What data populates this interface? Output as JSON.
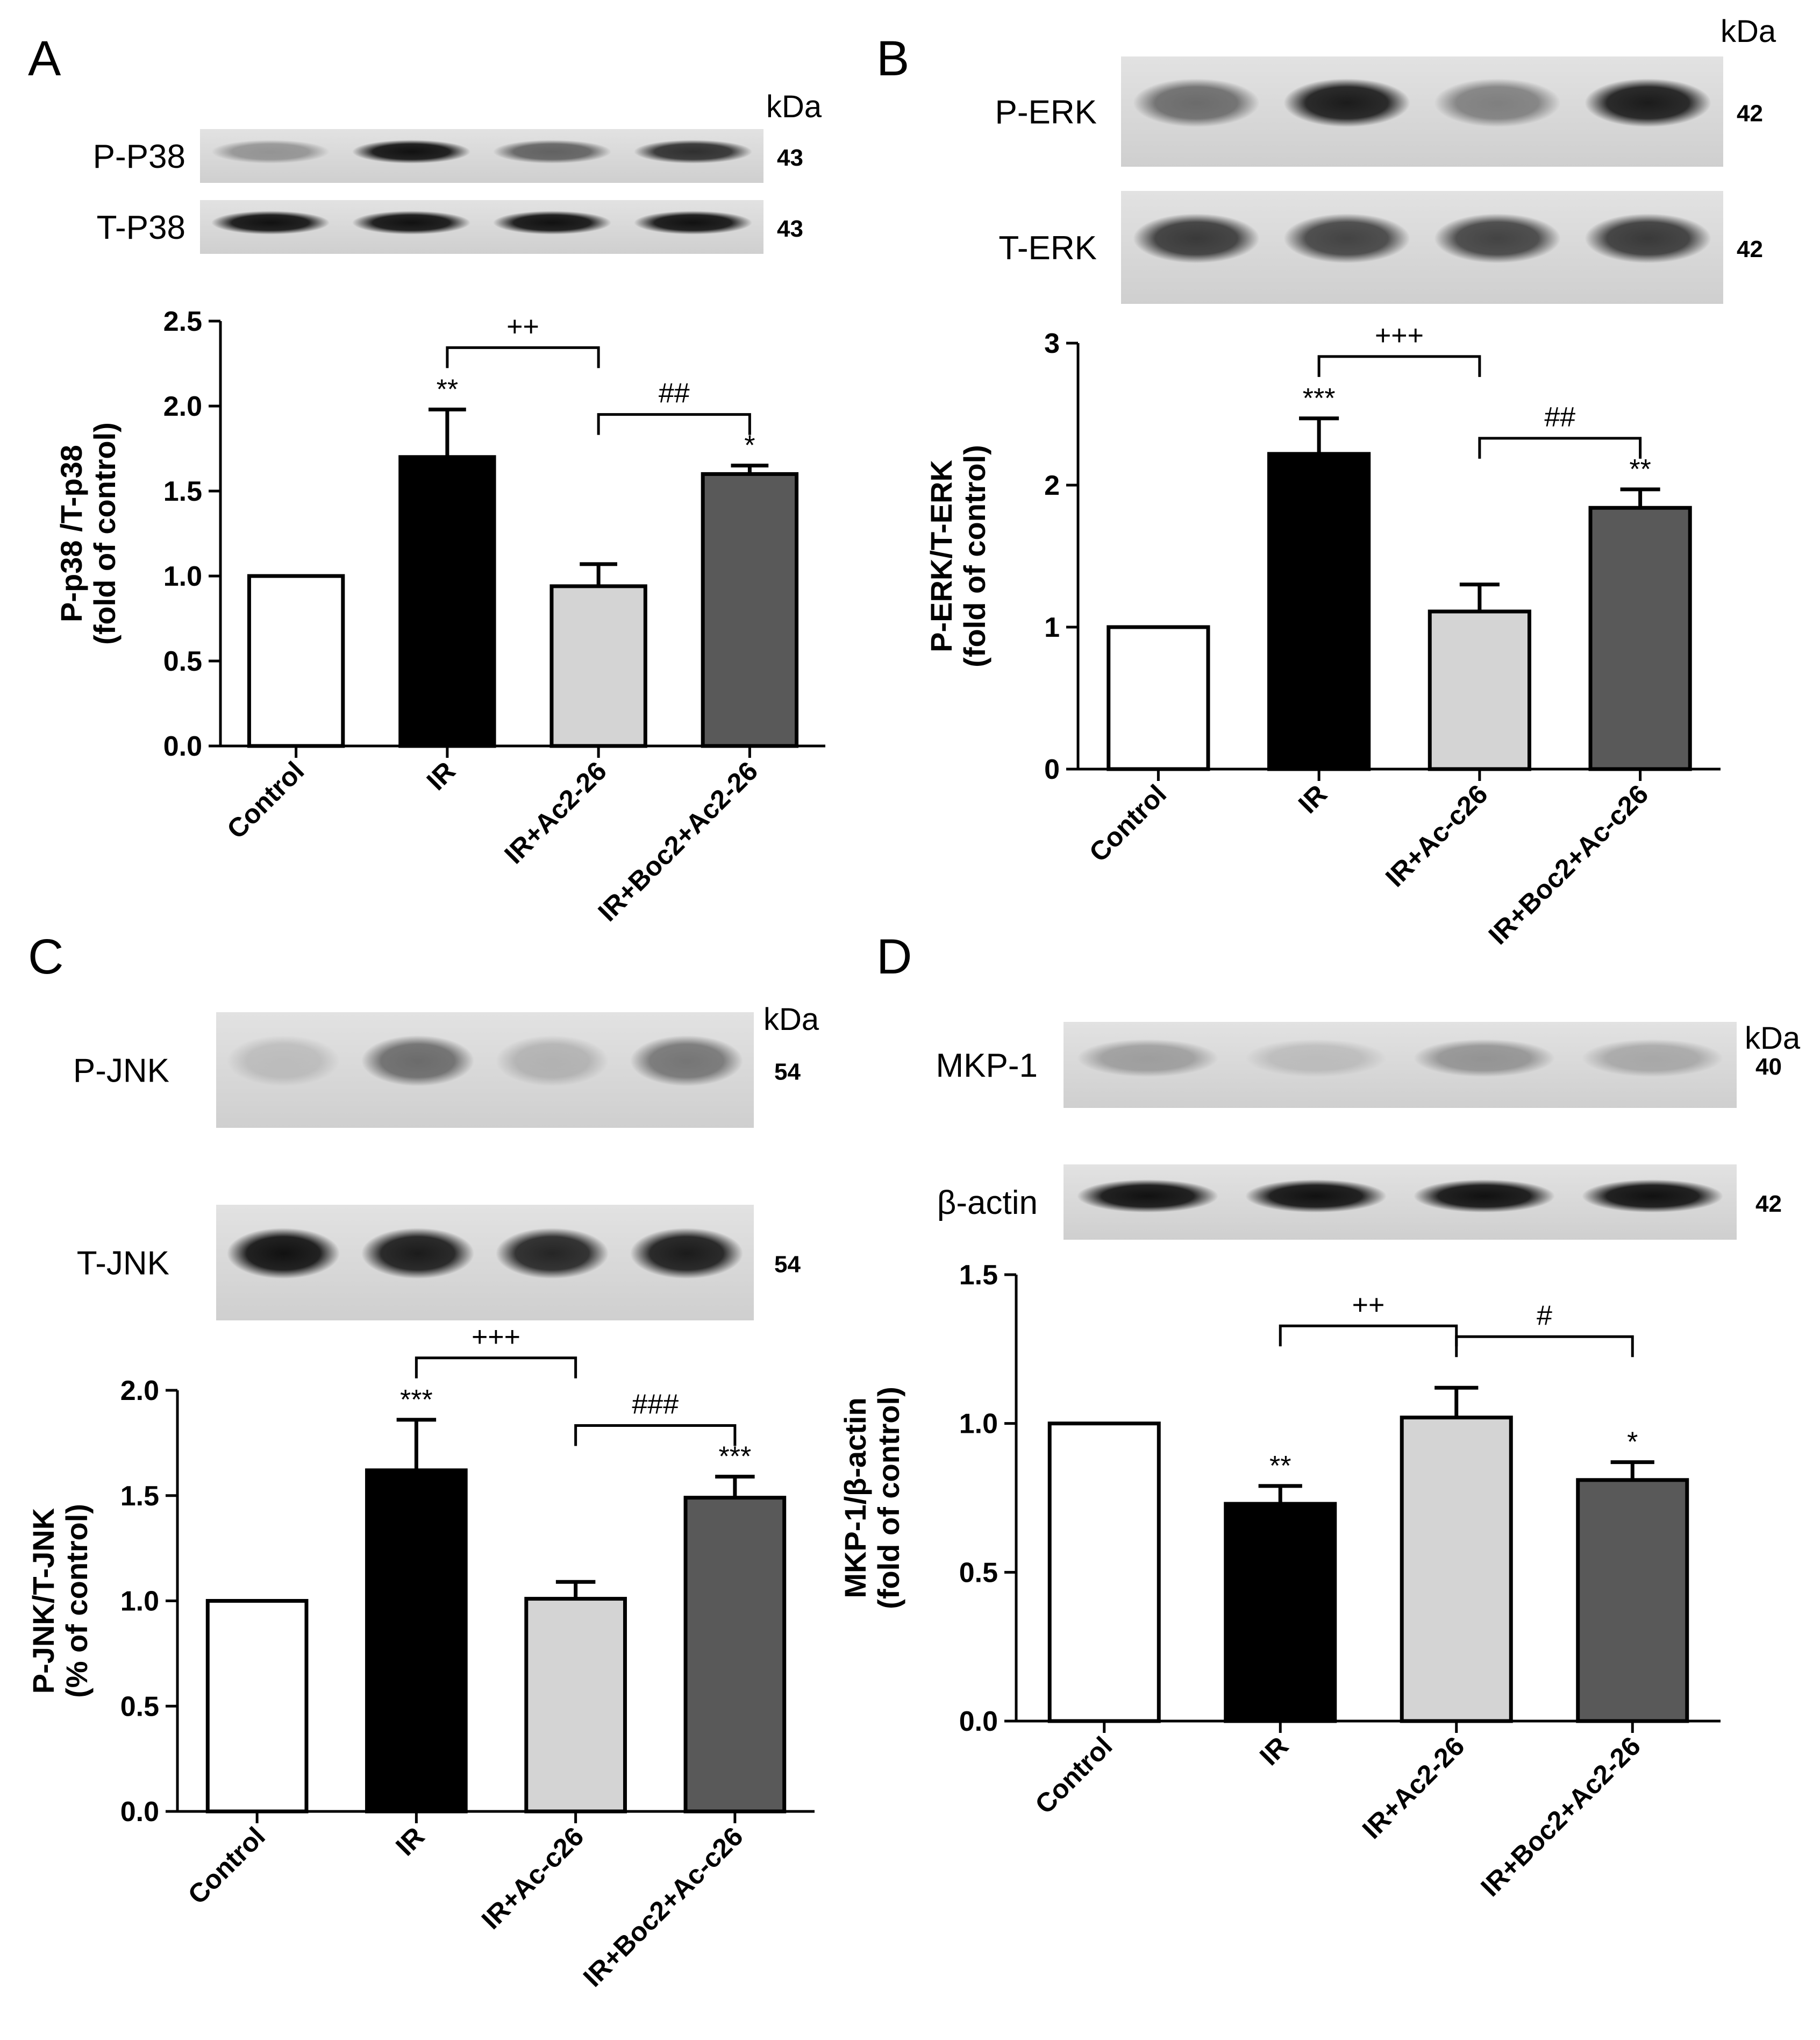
{
  "colors": {
    "control": "#ffffff",
    "ir": "#000000",
    "treat": "#d4d4d4",
    "boc": "#595959",
    "axis": "#000000",
    "gel_bg": "#d9d9d9"
  },
  "panels": [
    {
      "letter": "A",
      "kda_label": "kDa",
      "blots": [
        {
          "label": "P-P38",
          "kda": "43",
          "intensity": [
            0.35,
            1.0,
            0.6,
            0.85
          ]
        },
        {
          "label": "T-P38",
          "kda": "43",
          "intensity": [
            1.0,
            1.0,
            1.0,
            1.0
          ]
        }
      ]
    },
    {
      "letter": "B",
      "kda_label": "kDa",
      "blots": [
        {
          "label": "P-ERK",
          "kda": "42",
          "intensity": [
            0.55,
            0.95,
            0.45,
            0.95
          ]
        },
        {
          "label": "T-ERK",
          "kda": "42",
          "intensity": [
            0.8,
            0.75,
            0.75,
            0.8
          ]
        }
      ]
    },
    {
      "letter": "C",
      "kda_label": "kDa",
      "blots": [
        {
          "label": "P-JNK",
          "kda": "54",
          "intensity": [
            0.15,
            0.55,
            0.2,
            0.5
          ]
        },
        {
          "label": "T-JNK",
          "kda": "54",
          "intensity": [
            1.0,
            0.95,
            0.9,
            0.95
          ]
        }
      ]
    },
    {
      "letter": "D",
      "kda_label": "kDa",
      "blots": [
        {
          "label": "MKP-1",
          "kda": "40",
          "intensity": [
            0.3,
            0.15,
            0.35,
            0.25
          ]
        },
        {
          "label": "β-actin",
          "kda": "42",
          "intensity": [
            1.0,
            1.0,
            1.0,
            1.0
          ]
        }
      ]
    }
  ],
  "chart_data": [
    {
      "type": "bar",
      "panel": "A",
      "categories": [
        "Control",
        "IR",
        "IR+Ac2-26",
        "IR+Boc2+Ac2-26"
      ],
      "values": [
        1.0,
        1.7,
        0.94,
        1.6
      ],
      "errors": [
        0,
        0.28,
        0.13,
        0.05
      ],
      "significance": [
        "",
        "**",
        "",
        "*"
      ],
      "brackets": [
        {
          "from": 1,
          "to": 2,
          "label": "++"
        },
        {
          "from": 2,
          "to": 3,
          "label": "##"
        }
      ],
      "ylabel": [
        "P-p38 /T-p38",
        "(fold of control)"
      ],
      "ylim": [
        0,
        2.5
      ],
      "ticks": [
        "0.0",
        "0.5",
        "1.0",
        "1.5",
        "2.0",
        "2.5"
      ]
    },
    {
      "type": "bar",
      "panel": "B",
      "categories": [
        "Control",
        "IR",
        "IR+Ac-c26",
        "IR+Boc2+Ac-c26"
      ],
      "values": [
        1.0,
        2.22,
        1.11,
        1.84
      ],
      "errors": [
        0,
        0.25,
        0.19,
        0.13
      ],
      "significance": [
        "",
        "***",
        "",
        "**"
      ],
      "brackets": [
        {
          "from": 1,
          "to": 2,
          "label": "+++"
        },
        {
          "from": 2,
          "to": 3,
          "label": "##"
        }
      ],
      "ylabel": [
        "P-ERK/T-ERK",
        "(fold of control)"
      ],
      "ylim": [
        0,
        3
      ],
      "ticks": [
        "0",
        "1",
        "2",
        "3"
      ]
    },
    {
      "type": "bar",
      "panel": "C",
      "categories": [
        "Control",
        "IR",
        "IR+Ac-c26",
        "IR+Boc2+Ac-c26"
      ],
      "values": [
        1.0,
        1.62,
        1.01,
        1.49
      ],
      "errors": [
        0,
        0.24,
        0.08,
        0.1
      ],
      "significance": [
        "",
        "***",
        "",
        "***"
      ],
      "brackets": [
        {
          "from": 1,
          "to": 2,
          "label": "+++"
        },
        {
          "from": 2,
          "to": 3,
          "label": "###"
        }
      ],
      "ylabel": [
        "P-JNK/T-JNK",
        "(% of control)"
      ],
      "ylim": [
        0,
        2.0
      ],
      "ticks": [
        "0.0",
        "0.5",
        "1.0",
        "1.5",
        "2.0"
      ]
    },
    {
      "type": "bar",
      "panel": "D",
      "categories": [
        "Control",
        "IR",
        "IR+Ac2-26",
        "IR+Boc2+Ac2-26"
      ],
      "values": [
        1.0,
        0.73,
        1.02,
        0.81
      ],
      "errors": [
        0,
        0.06,
        0.1,
        0.06
      ],
      "significance": [
        "",
        "**",
        "",
        "*"
      ],
      "brackets": [
        {
          "from": 1,
          "to": 2,
          "label": "++"
        },
        {
          "from": 2,
          "to": 3,
          "label": "#"
        }
      ],
      "ylabel": [
        "MKP-1/β-actin",
        "(fold of control)"
      ],
      "ylim": [
        0,
        1.5
      ],
      "ticks": [
        "0.0",
        "0.5",
        "1.0",
        "1.5"
      ]
    }
  ]
}
